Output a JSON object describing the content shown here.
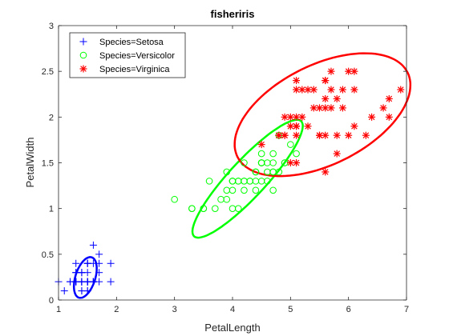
{
  "chart_data": {
    "type": "scatter",
    "title": "fisheriris",
    "xlabel": "PetalLength",
    "ylabel": "PetalWidth",
    "xlim": [
      1,
      7
    ],
    "ylim": [
      0,
      3
    ],
    "xticks": [
      1,
      2,
      3,
      4,
      5,
      6,
      7
    ],
    "yticks": [
      0,
      0.5,
      1,
      1.5,
      2,
      2.5,
      3
    ],
    "xtick_labels": [
      "1",
      "2",
      "3",
      "4",
      "5",
      "6",
      "7"
    ],
    "ytick_labels": [
      "0",
      "0.5",
      "1",
      "1.5",
      "2",
      "2.5",
      "3"
    ],
    "grid": false,
    "legend_position": "top-left",
    "series": [
      {
        "name": "Species=Setosa",
        "marker": "plus",
        "color": "#0000ff",
        "points": [
          [
            1.4,
            0.2
          ],
          [
            1.4,
            0.2
          ],
          [
            1.3,
            0.2
          ],
          [
            1.5,
            0.2
          ],
          [
            1.4,
            0.2
          ],
          [
            1.7,
            0.4
          ],
          [
            1.4,
            0.3
          ],
          [
            1.5,
            0.2
          ],
          [
            1.4,
            0.2
          ],
          [
            1.5,
            0.1
          ],
          [
            1.5,
            0.2
          ],
          [
            1.6,
            0.2
          ],
          [
            1.4,
            0.1
          ],
          [
            1.1,
            0.1
          ],
          [
            1.2,
            0.2
          ],
          [
            1.5,
            0.4
          ],
          [
            1.3,
            0.4
          ],
          [
            1.4,
            0.3
          ],
          [
            1.7,
            0.3
          ],
          [
            1.5,
            0.3
          ],
          [
            1.7,
            0.2
          ],
          [
            1.5,
            0.4
          ],
          [
            1.0,
            0.2
          ],
          [
            1.7,
            0.5
          ],
          [
            1.9,
            0.2
          ],
          [
            1.6,
            0.2
          ],
          [
            1.6,
            0.4
          ],
          [
            1.5,
            0.2
          ],
          [
            1.4,
            0.2
          ],
          [
            1.6,
            0.2
          ],
          [
            1.6,
            0.2
          ],
          [
            1.5,
            0.4
          ],
          [
            1.5,
            0.1
          ],
          [
            1.4,
            0.2
          ],
          [
            1.5,
            0.2
          ],
          [
            1.2,
            0.2
          ],
          [
            1.3,
            0.2
          ],
          [
            1.4,
            0.1
          ],
          [
            1.3,
            0.2
          ],
          [
            1.5,
            0.2
          ],
          [
            1.3,
            0.3
          ],
          [
            1.3,
            0.3
          ],
          [
            1.3,
            0.2
          ],
          [
            1.6,
            0.6
          ],
          [
            1.9,
            0.4
          ],
          [
            1.4,
            0.3
          ],
          [
            1.6,
            0.2
          ],
          [
            1.4,
            0.2
          ],
          [
            1.5,
            0.2
          ],
          [
            1.4,
            0.2
          ]
        ],
        "ellipse": {
          "center": [
            1.462,
            0.246
          ],
          "semi_axes": [
            0.253,
            0.156
          ],
          "angle_deg": 53,
          "color": "#0000ff"
        }
      },
      {
        "name": "Species=Versicolor",
        "marker": "circle",
        "color": "#00ff00",
        "points": [
          [
            4.7,
            1.4
          ],
          [
            4.5,
            1.5
          ],
          [
            4.9,
            1.5
          ],
          [
            4.0,
            1.3
          ],
          [
            4.6,
            1.5
          ],
          [
            4.5,
            1.3
          ],
          [
            4.7,
            1.6
          ],
          [
            3.3,
            1.0
          ],
          [
            4.6,
            1.3
          ],
          [
            3.9,
            1.4
          ],
          [
            3.5,
            1.0
          ],
          [
            4.2,
            1.5
          ],
          [
            4.0,
            1.0
          ],
          [
            4.7,
            1.4
          ],
          [
            3.6,
            1.3
          ],
          [
            4.4,
            1.4
          ],
          [
            4.5,
            1.5
          ],
          [
            4.1,
            1.0
          ],
          [
            4.5,
            1.5
          ],
          [
            3.9,
            1.1
          ],
          [
            4.8,
            1.8
          ],
          [
            4.0,
            1.3
          ],
          [
            4.9,
            1.5
          ],
          [
            4.7,
            1.2
          ],
          [
            4.3,
            1.3
          ],
          [
            4.4,
            1.4
          ],
          [
            4.8,
            1.4
          ],
          [
            5.0,
            1.7
          ],
          [
            4.5,
            1.5
          ],
          [
            3.5,
            1.0
          ],
          [
            3.8,
            1.1
          ],
          [
            3.7,
            1.0
          ],
          [
            3.9,
            1.2
          ],
          [
            5.1,
            1.6
          ],
          [
            4.5,
            1.5
          ],
          [
            4.5,
            1.6
          ],
          [
            4.7,
            1.5
          ],
          [
            4.4,
            1.3
          ],
          [
            4.1,
            1.3
          ],
          [
            4.0,
            1.3
          ],
          [
            4.4,
            1.2
          ],
          [
            4.6,
            1.4
          ],
          [
            4.0,
            1.2
          ],
          [
            3.3,
            1.0
          ],
          [
            4.2,
            1.3
          ],
          [
            4.2,
            1.2
          ],
          [
            4.2,
            1.3
          ],
          [
            4.3,
            1.3
          ],
          [
            3.0,
            1.1
          ],
          [
            4.1,
            1.3
          ]
        ],
        "ellipse": {
          "center": [
            4.26,
            1.326
          ],
          "semi_axes": [
            1.123,
            0.242
          ],
          "angle_deg": 33,
          "color": "#00ff00"
        }
      },
      {
        "name": "Species=Virginica",
        "marker": "asterisk",
        "color": "#ff0000",
        "points": [
          [
            6.0,
            2.5
          ],
          [
            5.1,
            1.9
          ],
          [
            5.9,
            2.1
          ],
          [
            5.6,
            1.8
          ],
          [
            5.8,
            2.2
          ],
          [
            6.6,
            2.1
          ],
          [
            4.5,
            1.7
          ],
          [
            6.3,
            1.8
          ],
          [
            5.8,
            1.8
          ],
          [
            6.1,
            2.5
          ],
          [
            5.1,
            2.0
          ],
          [
            5.3,
            1.9
          ],
          [
            5.5,
            2.1
          ],
          [
            5.0,
            2.0
          ],
          [
            5.1,
            2.4
          ],
          [
            5.3,
            2.3
          ],
          [
            5.5,
            1.8
          ],
          [
            6.7,
            2.2
          ],
          [
            6.9,
            2.3
          ],
          [
            5.0,
            1.5
          ],
          [
            5.7,
            2.3
          ],
          [
            4.9,
            2.0
          ],
          [
            6.7,
            2.0
          ],
          [
            4.9,
            1.8
          ],
          [
            5.7,
            2.1
          ],
          [
            6.0,
            1.8
          ],
          [
            4.8,
            1.8
          ],
          [
            4.9,
            1.8
          ],
          [
            5.6,
            2.1
          ],
          [
            5.8,
            1.6
          ],
          [
            6.1,
            1.9
          ],
          [
            6.4,
            2.0
          ],
          [
            5.6,
            2.2
          ],
          [
            5.1,
            1.5
          ],
          [
            5.6,
            1.4
          ],
          [
            6.1,
            2.3
          ],
          [
            5.6,
            2.4
          ],
          [
            5.5,
            1.8
          ],
          [
            4.8,
            1.8
          ],
          [
            5.4,
            2.1
          ],
          [
            5.6,
            2.4
          ],
          [
            5.1,
            2.3
          ],
          [
            5.1,
            1.9
          ],
          [
            5.9,
            2.3
          ],
          [
            5.7,
            2.5
          ],
          [
            5.2,
            2.3
          ],
          [
            5.0,
            1.9
          ],
          [
            5.2,
            2.0
          ],
          [
            5.4,
            2.3
          ],
          [
            5.1,
            1.8
          ]
        ],
        "ellipse": {
          "center": [
            5.552,
            2.026
          ],
          "semi_axes": [
            1.555,
            0.573
          ],
          "angle_deg": 14,
          "color": "#ff0000"
        }
      }
    ]
  }
}
